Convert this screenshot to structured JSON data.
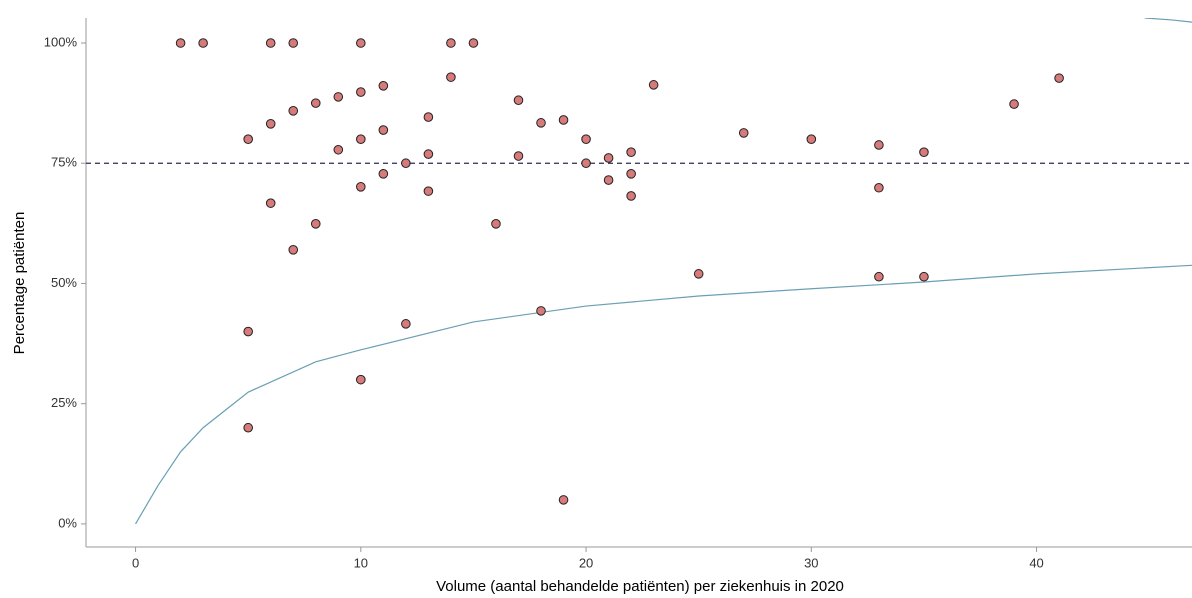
{
  "chart_data": {
    "type": "scatter",
    "x_label": "Volume (aantal behandelde patiënten) per ziekenhuis in 2020",
    "y_label": "Percentage patiënten",
    "xlim": [
      -2.2,
      46.9
    ],
    "ylim": [
      -4.8,
      105.2
    ],
    "xticks": [
      0,
      10,
      20,
      30,
      40
    ],
    "yticks": [
      {
        "value": 0,
        "label": "0%"
      },
      {
        "value": 25,
        "label": "25%"
      },
      {
        "value": 50,
        "label": "50%"
      },
      {
        "value": 75,
        "label": "75%"
      },
      {
        "value": 100,
        "label": "100%"
      }
    ],
    "grid": false,
    "points": {
      "color": "#d67a7a",
      "x": [
        2,
        3,
        6,
        7,
        10,
        14,
        15,
        5,
        6,
        7,
        8,
        9,
        10,
        11,
        14,
        9,
        10,
        11,
        13,
        12,
        13,
        11,
        10,
        13,
        6,
        8,
        7,
        5,
        10,
        5,
        12,
        17,
        17,
        16,
        18,
        18,
        19,
        19,
        20,
        20,
        21,
        21,
        22,
        22,
        22,
        23,
        25,
        27,
        30,
        33,
        33,
        33,
        35,
        35,
        39,
        41
      ],
      "y": [
        100,
        100,
        100,
        100,
        100,
        100,
        100,
        80,
        83.2,
        85.9,
        87.5,
        88.8,
        89.8,
        91.1,
        92.9,
        77.8,
        80,
        81.9,
        84.6,
        75,
        76.9,
        72.8,
        70.1,
        69.2,
        66.7,
        62.4,
        57,
        40,
        30,
        20,
        41.6,
        88.1,
        76.5,
        62.4,
        83.4,
        44.3,
        84,
        5,
        80,
        75,
        76.1,
        71.5,
        77.3,
        72.8,
        68.2,
        91.3,
        52,
        81.3,
        80,
        78.8,
        69.9,
        51.4,
        77.3,
        51.4,
        87.3,
        92.7
      ]
    },
    "hline": {
      "value": 75,
      "color": "#2b2b5a"
    },
    "curves": [
      {
        "color": "#6a9fb5",
        "x": [
          0,
          1,
          2,
          3,
          5,
          8,
          10,
          15,
          20,
          25,
          30,
          35,
          40,
          47
        ],
        "y": [
          0,
          8,
          15,
          20,
          27.4,
          33.7,
          36.2,
          42,
          45.3,
          47.4,
          48.9,
          50.3,
          52,
          53.8
        ]
      },
      {
        "color": "#6a9fb5",
        "x": [
          44.8,
          46,
          47
        ],
        "y": [
          105.2,
          104.8,
          104.3
        ]
      }
    ]
  }
}
